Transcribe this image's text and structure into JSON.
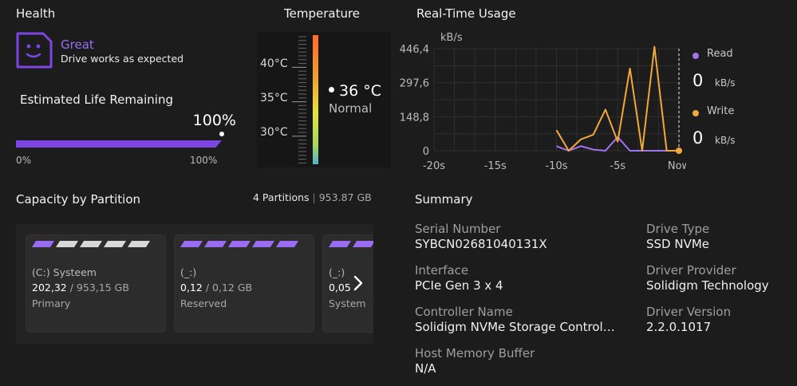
{
  "health": {
    "title": "Health",
    "icon": "face-icon",
    "status": "Great",
    "description": "Drive works as expected",
    "life_title": "Estimated Life Remaining",
    "life_percent_label": "100%",
    "life_fraction": 1.0,
    "life_min": "0%",
    "life_max": "100%",
    "accent": "#7d45e3"
  },
  "temperature": {
    "title": "Temperature",
    "ticks": [
      "40°C",
      "35°C",
      "30°C"
    ],
    "value": "36 °C",
    "status": "Normal"
  },
  "usage": {
    "title": "Real-Time Usage",
    "legend": {
      "read_label": "Read",
      "read_value": "0",
      "read_unit": "kB/s",
      "read_color": "#a174f2",
      "write_label": "Write",
      "write_value": "0",
      "write_unit": "kB/s",
      "write_color": "#f2a83a"
    },
    "chart_data": {
      "type": "line",
      "ylabel": "kB/s",
      "y_ticks": [
        "446,4",
        "297,6",
        "148,8",
        "0"
      ],
      "x_ticks": [
        "-20s",
        "-15s",
        "-10s",
        "-5s",
        "Now"
      ],
      "ylim": [
        0,
        446.4
      ],
      "xlim": [
        -20,
        0
      ],
      "grid": true,
      "series": [
        {
          "name": "Read",
          "x": [
            -10,
            -9,
            -8,
            -7,
            -6,
            -5,
            -4,
            -3,
            -2,
            -1,
            0
          ],
          "values": [
            20,
            0,
            20,
            5,
            0,
            60,
            0,
            0,
            0,
            0,
            0
          ]
        },
        {
          "name": "Write",
          "x": [
            -10,
            -9,
            -8,
            -7,
            -6,
            -5,
            -4,
            -3,
            -2,
            -1,
            0
          ],
          "values": [
            90,
            0,
            50,
            70,
            180,
            40,
            360,
            0,
            455,
            0,
            0
          ]
        }
      ]
    }
  },
  "capacity": {
    "title": "Capacity by Partition",
    "count": "4 Partitions",
    "separator": "|",
    "total": "953.87 GB",
    "used_color": "#9b6cf2",
    "free_color": "#d8d8d8",
    "partitions": [
      {
        "name": "(C:) Systeem",
        "used": "202,32",
        "total": "/ 953,15 GB",
        "type": "Primary",
        "segments_used": 1
      },
      {
        "name": "(_:)",
        "used": "0,12",
        "total": "/ 0,12 GB",
        "type": "Reserved",
        "segments_used": 5
      },
      {
        "name": "(_:)",
        "used": "0,05",
        "total": "",
        "type": "System",
        "segments_used": 5
      }
    ],
    "next_icon": "chevron-right-icon"
  },
  "summary": {
    "title": "Summary",
    "serial_label": "Serial Number",
    "serial_value": "SYBCN02681040131X",
    "interface_label": "Interface",
    "interface_value": "PCIe Gen 3 x 4",
    "controller_label": "Controller Name",
    "controller_value": "Solidigm NVMe Storage Control…",
    "hmb_label": "Host Memory Buffer",
    "hmb_value": "N/A",
    "drive_type_label": "Drive Type",
    "drive_type_value": "SSD NVMe",
    "provider_label": "Driver Provider",
    "provider_value": "Solidigm Technology",
    "version_label": "Driver Version",
    "version_value": "2.2.0.1017"
  }
}
